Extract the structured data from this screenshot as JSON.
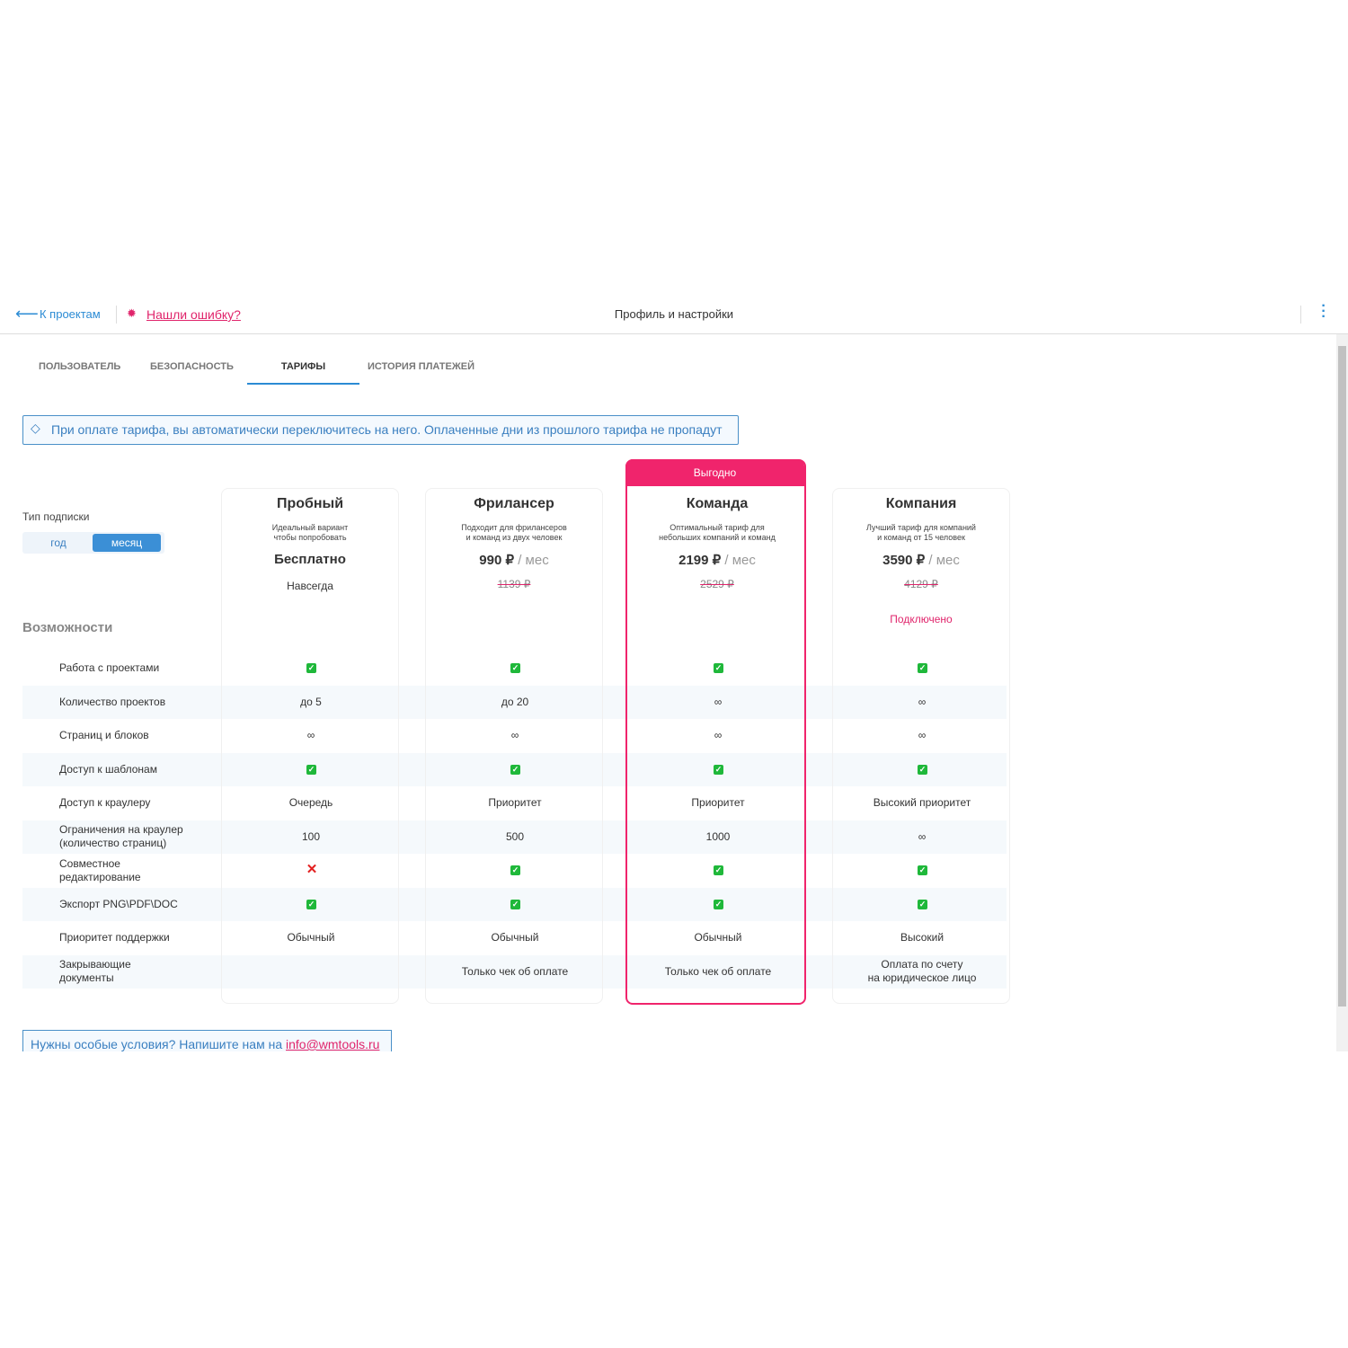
{
  "topbar": {
    "back": "К проектам",
    "bug": "Нашли ошибку?",
    "title": "Профиль и настройки"
  },
  "tabs": [
    "ПОЛЬЗОВАТЕЛЬ",
    "БЕЗОПАСНОСТЬ",
    "ТАРИФЫ",
    "ИСТОРИЯ ПЛАТЕЖЕЙ"
  ],
  "active_tab": 2,
  "notice": "При оплате тарифа, вы автоматически переключитесь на него. Оплаченные дни из прошлого тарифа не пропадут",
  "subscription": {
    "label": "Тип подписки",
    "options": [
      "год",
      "месяц"
    ],
    "selected": 1
  },
  "features_title": "Возможности",
  "badge": "Выгодно",
  "highlighted": 2,
  "plans": [
    {
      "name": "Пробный",
      "desc": "Идеальный вариант\nчтобы попробовать",
      "price": "Бесплатно",
      "per": null,
      "old_price": null,
      "note": "Навсегда",
      "status": null
    },
    {
      "name": "Фрилансер",
      "desc": "Подходит для фрилансеров\nи команд из двух человек",
      "price": "990 ₽",
      "per": "/ мес",
      "old_price": "1139 ₽",
      "note": null,
      "status": null
    },
    {
      "name": "Команда",
      "desc": "Оптимальный тариф для\nнебольших компаний и команд",
      "price": "2199 ₽",
      "per": "/ мес",
      "old_price": "2529 ₽",
      "note": null,
      "status": null
    },
    {
      "name": "Компания",
      "desc": "Лучший тариф для компаний\nи команд от 15 человек",
      "price": "3590 ₽",
      "per": "/ мес",
      "old_price": "4129 ₽",
      "note": null,
      "status": "Подключено"
    }
  ],
  "features": [
    {
      "name": "Работа с проектами",
      "values": [
        true,
        true,
        true,
        true
      ]
    },
    {
      "name": "Количество проектов",
      "values": [
        "до 5",
        "до 20",
        "∞",
        "∞"
      ]
    },
    {
      "name": "Страниц и блоков",
      "values": [
        "∞",
        "∞",
        "∞",
        "∞"
      ]
    },
    {
      "name": "Доступ к шаблонам",
      "values": [
        true,
        true,
        true,
        true
      ]
    },
    {
      "name": "Доступ к краулеру",
      "values": [
        "Очередь",
        "Приоритет",
        "Приоритет",
        "Высокий приоритет"
      ]
    },
    {
      "name": "Ограничения на краулер\n(количество страниц)",
      "values": [
        "100",
        "500",
        "1000",
        "∞"
      ]
    },
    {
      "name": "Совместное\nредактирование",
      "values": [
        false,
        true,
        true,
        true
      ]
    },
    {
      "name": "Экспорт PNG\\PDF\\DOC",
      "values": [
        true,
        true,
        true,
        true
      ]
    },
    {
      "name": "Приоритет поддержки",
      "values": [
        "Обычный",
        "Обычный",
        "Обычный",
        "Высокий"
      ]
    },
    {
      "name": "Закрывающие\nдокументы",
      "values": [
        null,
        "Только чек об оплате",
        "Только чек об оплате",
        "Оплата по счету\nна юридическое лицо"
      ]
    }
  ],
  "footer": {
    "text": "Нужны особые условия? Напишите нам на",
    "email": "info@wmtools.ru"
  }
}
